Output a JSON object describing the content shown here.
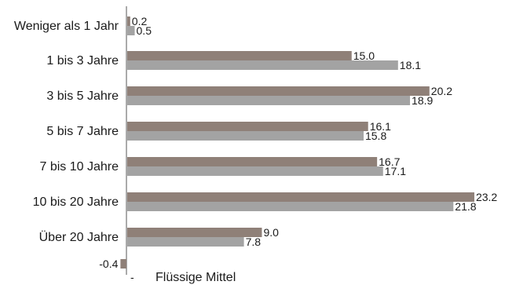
{
  "chart_data": {
    "type": "bar",
    "orientation": "horizontal",
    "categories": [
      "Weniger als 1 Jahr",
      "1 bis 3 Jahre",
      "3 bis 5 Jahre",
      "5 bis 7 Jahre",
      "7 bis 10 Jahre",
      "10 bis 20 Jahre",
      "Über 20 Jahre"
    ],
    "series": [
      {
        "values": [
          0.2,
          15.0,
          20.2,
          16.1,
          16.7,
          23.2,
          9.0
        ],
        "color": "#8f8078"
      },
      {
        "values": [
          0.5,
          18.1,
          18.9,
          15.8,
          17.1,
          21.8,
          7.8
        ],
        "color": "#a3a3a3"
      }
    ],
    "extra_bar": {
      "value": -0.4,
      "value_label": "-0.4",
      "color": "#8f8078"
    },
    "bottom_label": "Flüssige Mittel",
    "bottom_marker": "-",
    "value_labels": [
      [
        "0.2",
        "15.0",
        "20.2",
        "16.1",
        "16.7",
        "23.2",
        "9.0"
      ],
      [
        "0.5",
        "18.1",
        "18.9",
        "15.8",
        "17.1",
        "21.8",
        "7.8"
      ]
    ],
    "xlim": [
      -0.4,
      23.2
    ],
    "grid": false,
    "legend": "none"
  }
}
